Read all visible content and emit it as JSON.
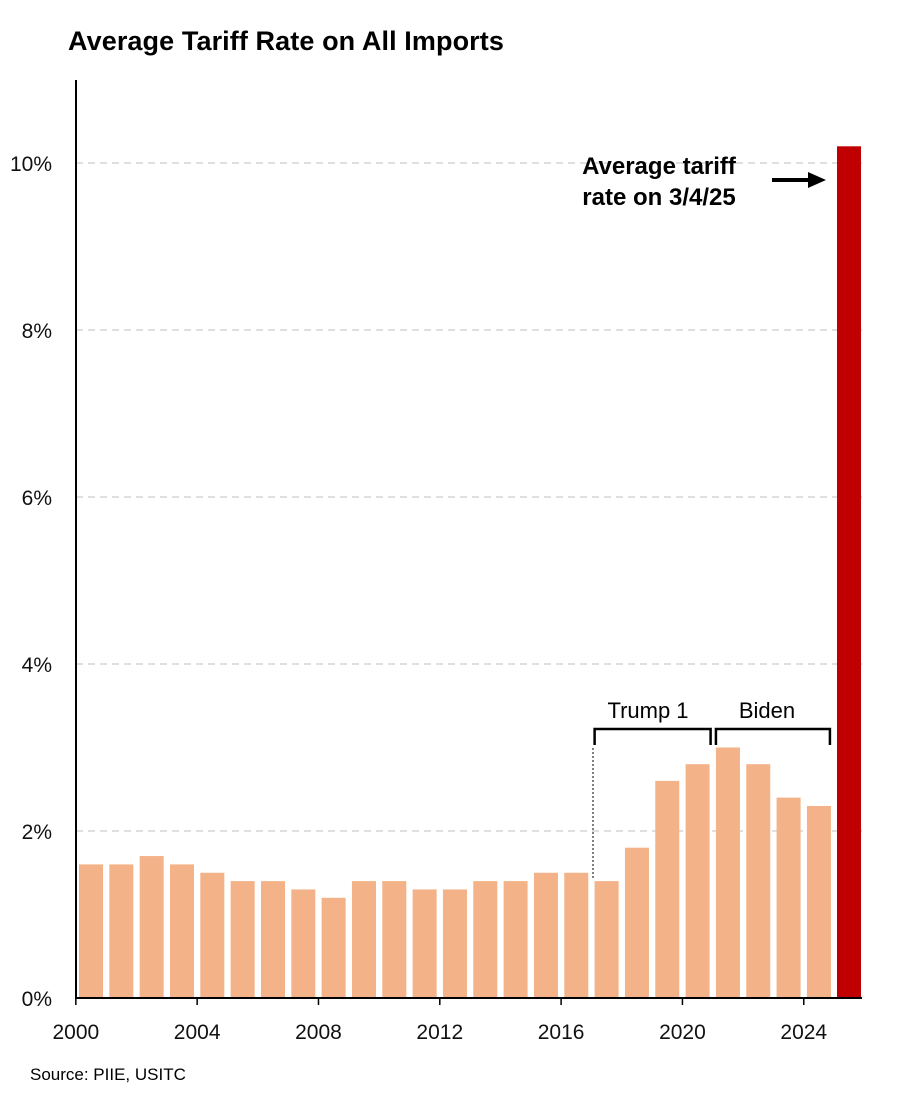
{
  "chart_data": {
    "type": "bar",
    "title": "Average Tariff Rate on All Imports",
    "xlabel": "",
    "ylabel": "",
    "x": [
      2000,
      2001,
      2002,
      2003,
      2004,
      2005,
      2006,
      2007,
      2008,
      2009,
      2010,
      2011,
      2012,
      2013,
      2014,
      2015,
      2016,
      2017,
      2018,
      2019,
      2020,
      2021,
      2022,
      2023,
      2024
    ],
    "values": [
      1.6,
      1.6,
      1.7,
      1.6,
      1.5,
      1.4,
      1.4,
      1.3,
      1.2,
      1.4,
      1.4,
      1.3,
      1.3,
      1.4,
      1.4,
      1.5,
      1.5,
      1.4,
      1.8,
      2.6,
      2.8,
      3.0,
      2.8,
      2.4,
      2.3
    ],
    "highlight_bar": {
      "label": "3/4/25",
      "value": 10.2
    },
    "ylim": [
      0,
      11
    ],
    "yticks": [
      0,
      2,
      4,
      6,
      8,
      10
    ],
    "ytick_labels": [
      "0%",
      "2%",
      "4%",
      "6%",
      "8%",
      "10%"
    ],
    "xticks": [
      2000,
      2004,
      2008,
      2012,
      2016,
      2020,
      2024
    ],
    "xtick_labels": [
      "2000",
      "2004",
      "2008",
      "2012",
      "2016",
      "2020",
      "2024"
    ],
    "grid": true,
    "annotations": {
      "callout_line1": "Average tariff",
      "callout_line2": "rate on 3/4/25",
      "bracket_trump": {
        "label": "Trump 1",
        "start": 2017,
        "end": 2020
      },
      "bracket_biden": {
        "label": "Biden",
        "start": 2021,
        "end": 2024
      }
    },
    "colors": {
      "bar": "#F3B287",
      "highlight": "#C00000",
      "grid": "#CCCCCC",
      "axis": "#000000"
    }
  },
  "source": "Source: PIIE, USITC"
}
